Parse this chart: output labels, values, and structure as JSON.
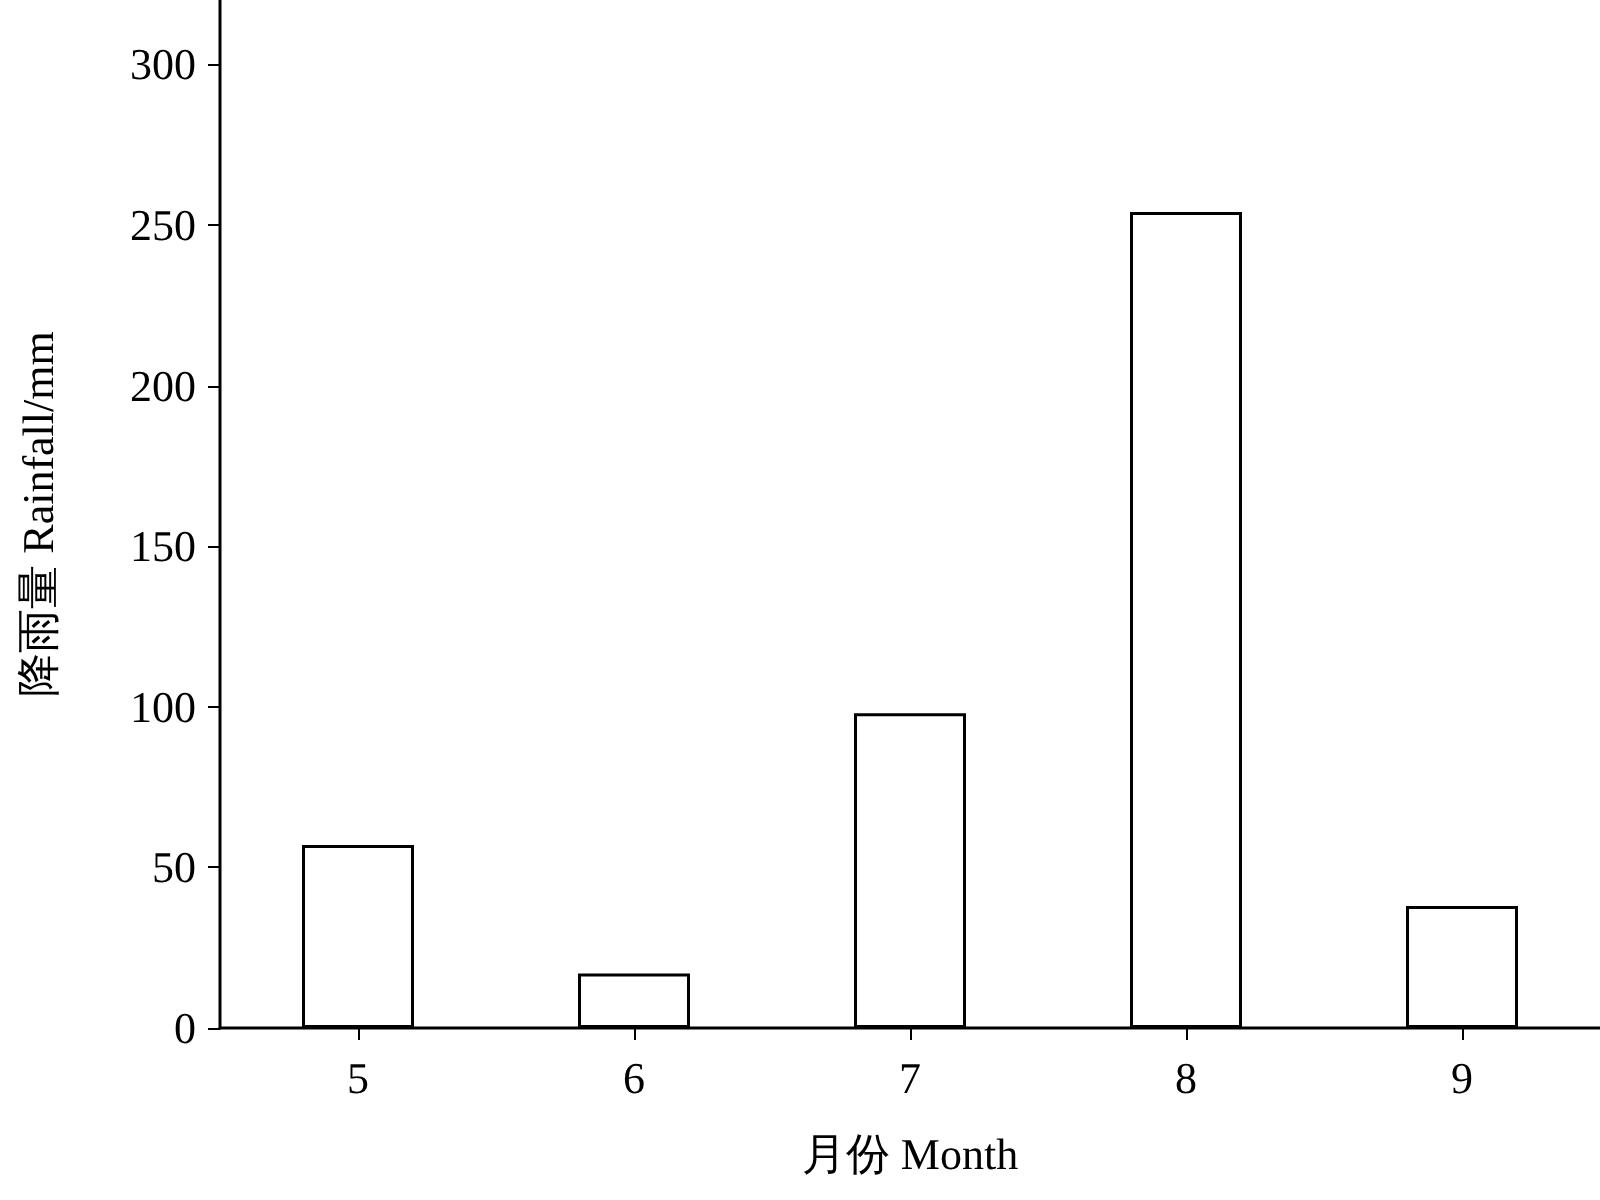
{
  "chart_data": {
    "type": "bar",
    "xlabel": "月份 Month",
    "ylabel": "降雨量 Rainfall/mm",
    "categories": [
      "5",
      "6",
      "7",
      "8",
      "9"
    ],
    "values": [
      57,
      17,
      98,
      254,
      38
    ],
    "color": "#ffffff",
    "ylim": [
      0,
      320
    ],
    "yticks": [
      0,
      50,
      100,
      150,
      200,
      250,
      300
    ],
    "grid": false
  }
}
